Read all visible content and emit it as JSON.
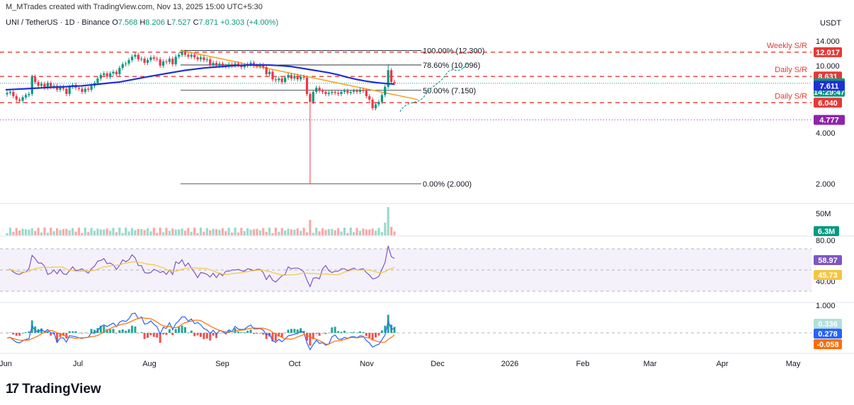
{
  "header": {
    "credit": "M_MTrades created with TradingView.com, Nov 13, 2025 15:00 UTC+5:30",
    "symbol": "UNI / TetherUS · 1D · Binance",
    "ohlc": [
      {
        "label": "O",
        "value": "7.568"
      },
      {
        "label": "H",
        "value": "8.206"
      },
      {
        "label": "L",
        "value": "7.527"
      },
      {
        "label": "C",
        "value": "7.871"
      }
    ],
    "change": "+0.303 (+4.00%)"
  },
  "logo": "TradingView",
  "colors": {
    "up": "#089981",
    "down": "#f23645",
    "ma": "#1e2fd6",
    "trend": "#f5a623",
    "sr": "#e53935",
    "rsi": "#7e57c2",
    "rsi_ma": "#f5c542",
    "macd": "#2962ff",
    "signal": "#ff6d00"
  },
  "chart_data": {
    "type": "candlestick",
    "price_axis": {
      "unit": "USDT",
      "ticks": [
        "14.000",
        "12.000",
        "10.000",
        "8.000",
        "6.000",
        "4.000",
        "2.000"
      ]
    },
    "x_axis": {
      "labels": [
        "Jun",
        "Jul",
        "Aug",
        "Sep",
        "Oct",
        "Nov",
        "Dec",
        "2026",
        "Feb",
        "Mar",
        "Apr",
        "May"
      ]
    },
    "price_series": [
      6.9,
      7.0,
      6.6,
      6.3,
      6.2,
      6.5,
      6.7,
      6.8,
      8.6,
      8.0,
      7.6,
      7.8,
      7.4,
      7.9,
      7.5,
      7.6,
      7.2,
      7.5,
      7.3,
      6.8,
      7.5,
      7.7,
      7.4,
      7.3,
      7.0,
      7.3,
      7.2,
      7.6,
      7.9,
      8.4,
      8.8,
      9.0,
      8.6,
      9.0,
      9.2,
      8.9,
      9.7,
      10.2,
      10.3,
      10.8,
      11.3,
      11.6,
      10.9,
      11.0,
      10.4,
      10.8,
      11.2,
      11.0,
      10.9,
      10.0,
      10.6,
      10.5,
      11.0,
      10.2,
      11.3,
      11.6,
      12.1,
      11.6,
      11.3,
      11.6,
      11.2,
      10.9,
      11.2,
      10.8,
      10.9,
      10.1,
      10.4,
      10.0,
      10.3,
      10.0,
      9.9,
      10.2,
      10.0,
      10.3,
      10.1,
      9.8,
      10.0,
      10.2,
      10.4,
      10.0,
      9.9,
      10.1,
      9.8,
      8.9,
      9.2,
      8.3,
      8.2,
      8.4,
      8.0,
      8.5,
      8.8,
      8.4,
      8.7,
      8.3,
      8.6,
      8.5,
      6.8,
      6.1,
      7.0,
      7.4,
      7.1,
      7.0,
      6.8,
      6.9,
      7.0,
      6.9,
      6.8,
      7.0,
      7.1,
      6.9,
      7.0,
      7.1,
      7.0,
      7.2,
      7.1,
      6.6,
      6.3,
      5.6,
      5.9,
      6.1,
      6.7,
      7.5,
      9.4,
      8.0,
      7.9
    ],
    "ma_series": [
      7.2,
      7.25,
      7.3,
      7.35,
      7.4,
      7.45,
      7.5,
      7.55,
      7.6,
      7.7,
      7.8,
      7.9,
      8.0,
      8.2,
      8.4,
      8.6,
      8.8,
      9.0,
      9.2,
      9.4,
      9.55,
      9.7,
      9.8,
      9.9,
      10.0,
      10.05,
      10.1,
      10.1,
      10.08,
      10.0,
      9.9,
      9.7,
      9.5,
      9.3,
      9.1,
      8.85,
      8.55,
      8.3,
      8.1,
      7.95,
      7.85,
      7.78
    ],
    "volume_label": "6.3M",
    "volume_axis": "50M",
    "rsi": {
      "value": "58.97",
      "ma": "45.73",
      "ticks": [
        "80.00",
        "40.00"
      ]
    },
    "macd": {
      "histogram": "0.336",
      "macd": "0.278",
      "signal": "-0.058",
      "ticks": [
        "1.000"
      ]
    },
    "fib_levels": [
      {
        "label": "100.00% (12.300)",
        "price": 12.3
      },
      {
        "label": "78.60% (10.096)",
        "price": 10.096
      },
      {
        "label": "50.00% (7.150)",
        "price": 7.15
      },
      {
        "label": "0.00% (2.000)",
        "price": 2.0
      }
    ],
    "sr_levels": [
      {
        "label": "Weekly S/R",
        "price": 12.017,
        "badge": "12.017"
      },
      {
        "label": "Daily S/R",
        "price": 8.631,
        "badge": "8.631"
      },
      {
        "label": "Daily S/R",
        "price": 6.04,
        "badge": "6.040"
      }
    ],
    "price_badges": [
      {
        "text": "7.871",
        "sub": "14:29:47",
        "price": 7.871,
        "color": "#089981"
      },
      {
        "text": "7.611",
        "price": 7.611,
        "color": "#1e2fd6"
      },
      {
        "text": "4.777",
        "price": 4.777,
        "color": "#8e24aa"
      }
    ]
  }
}
